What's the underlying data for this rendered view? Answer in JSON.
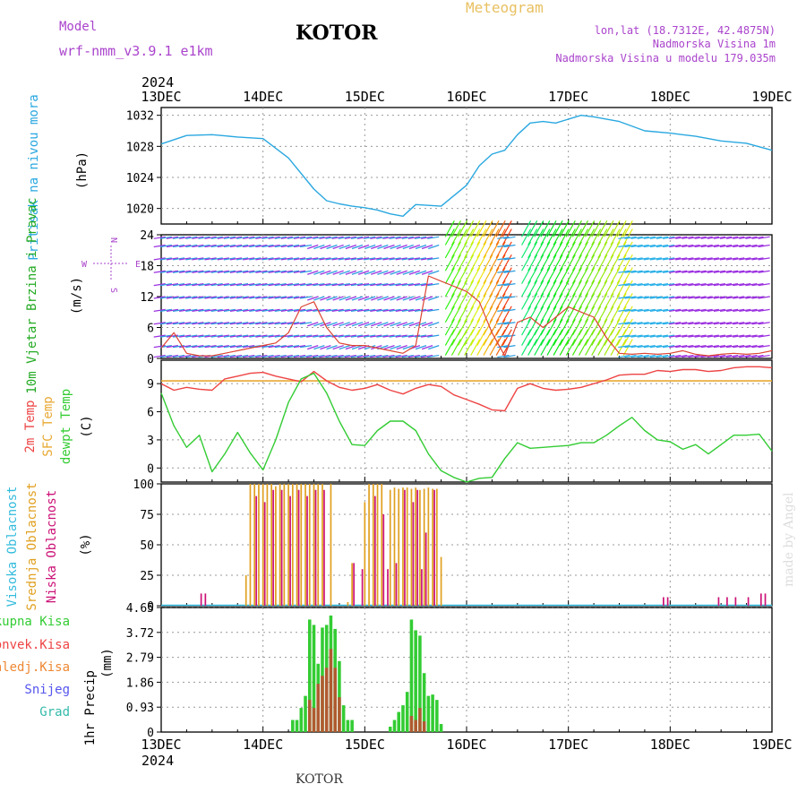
{
  "header": {
    "model_label": "Model",
    "model_name": "wrf-nmm_v3.9.1 e1km",
    "station": "KOTOR",
    "product": "Meteogram",
    "location": "lon,lat (18.7312E, 42.4875N)",
    "elevation": "Nadmorska Visina 1m",
    "model_elevation": "Nadmorska Visina u modelu 179.035m",
    "footer_station": "KOTOR",
    "watermark": "made by Angel"
  },
  "colors": {
    "pressure": "#2aa8e0",
    "temp": "#ee4444",
    "sfc_temp": "#e8a832",
    "dewpoint": "#33cc33",
    "high_cloud": "#33bbdd",
    "mid_cloud": "#e0a020",
    "low_cloud": "#cc1177",
    "total_precip": "#33cc33",
    "conv_precip": "#ee4444",
    "freezing": "#ee8833",
    "snow": "#5555ee",
    "hail": "#33bbaa",
    "model": "#aa44cc"
  },
  "time_axis": {
    "year": "2024",
    "labels": [
      "13DEC",
      "14DEC",
      "15DEC",
      "16DEC",
      "17DEC",
      "18DEC",
      "19DEC"
    ],
    "hours_total": 144
  },
  "chart_data": [
    {
      "type": "line",
      "id": "pressure",
      "ylabel": "Pritisak na nivou mora",
      "unit": "(hPa)",
      "ylim": [
        1018,
        1033
      ],
      "yticks": [
        "1020",
        "1024",
        "1028",
        "1032"
      ],
      "x": [
        0,
        6,
        12,
        18,
        24,
        30,
        36,
        39,
        42,
        45,
        48,
        51,
        54,
        57,
        60,
        66,
        72,
        75,
        78,
        81,
        84,
        87,
        90,
        93,
        96,
        99,
        102,
        108,
        114,
        120,
        126,
        132,
        138,
        144
      ],
      "values": [
        1028.3,
        1029.4,
        1029.5,
        1029.2,
        1029.0,
        1026.5,
        1022.5,
        1021.0,
        1020.6,
        1020.3,
        1020.1,
        1019.8,
        1019.3,
        1019.0,
        1020.5,
        1020.3,
        1023.0,
        1025.5,
        1027.0,
        1027.5,
        1029.5,
        1031.0,
        1031.2,
        1031.0,
        1031.5,
        1032.0,
        1031.8,
        1031.2,
        1030.0,
        1029.7,
        1029.3,
        1028.7,
        1028.4,
        1027.5
      ]
    },
    {
      "type": "line",
      "id": "wind",
      "ylabel": "10m Vjetar Brzina i Pravac",
      "unit": "(m/s)",
      "compass": [
        "N",
        "E",
        "S",
        "W"
      ],
      "ylim": [
        0,
        24
      ],
      "yticks": [
        "0",
        "6",
        "12",
        "18",
        "24"
      ],
      "x": [
        0,
        3,
        6,
        9,
        12,
        15,
        18,
        21,
        24,
        27,
        30,
        33,
        36,
        39,
        42,
        45,
        48,
        51,
        54,
        57,
        60,
        63,
        66,
        69,
        72,
        75,
        78,
        81,
        84,
        87,
        90,
        93,
        96,
        99,
        102,
        105,
        108,
        111,
        114,
        117,
        120,
        123,
        126,
        129,
        132,
        135,
        138,
        141,
        144
      ],
      "values": [
        2,
        5,
        1,
        0.5,
        0.5,
        1,
        1.5,
        2,
        2.5,
        3,
        5,
        10,
        11,
        6,
        3,
        2.5,
        2.5,
        2,
        1.5,
        1,
        2.5,
        16,
        15,
        14,
        13,
        11,
        5,
        0.5,
        7,
        8,
        6,
        8,
        10,
        9,
        8,
        4,
        1,
        0.8,
        1,
        0.8,
        1,
        1.5,
        0.8,
        0.5,
        0.8,
        1,
        0.8,
        1,
        1.5
      ]
    },
    {
      "type": "line",
      "id": "temperature",
      "ylabel": "2m Temp",
      "ylabel2": "SFC Temp",
      "ylabel3": "dewpt Temp",
      "unit": "(C)",
      "ylim": [
        -1.5,
        11.5
      ],
      "yticks": [
        "0",
        "3",
        "6",
        "9"
      ],
      "sfc_temp": 9.3,
      "series": [
        {
          "name": "2m Temp",
          "x": [
            0,
            3,
            6,
            9,
            12,
            15,
            18,
            21,
            24,
            27,
            30,
            33,
            36,
            39,
            42,
            45,
            48,
            51,
            54,
            57,
            60,
            63,
            66,
            69,
            72,
            75,
            78,
            81,
            84,
            87,
            90,
            93,
            96,
            99,
            102,
            105,
            108,
            111,
            114,
            117,
            120,
            123,
            126,
            129,
            132,
            135,
            138,
            141,
            144
          ],
          "values": [
            9,
            8.3,
            8.6,
            8.4,
            8.3,
            9.5,
            9.8,
            10.1,
            10.2,
            9.8,
            9.5,
            9.2,
            10.3,
            9.3,
            8.6,
            8.3,
            8.5,
            8.9,
            8.3,
            7.9,
            8.5,
            8.9,
            8.7,
            7.8,
            7.3,
            6.8,
            6.2,
            6.1,
            8.5,
            9.0,
            8.5,
            8.3,
            8.4,
            8.6,
            9.0,
            9.4,
            9.9,
            10,
            10,
            10.4,
            10.3,
            10.5,
            10.5,
            10.3,
            10.4,
            10.7,
            10.8,
            10.8,
            10.7
          ]
        },
        {
          "name": "dewpt Temp",
          "x": [
            0,
            3,
            6,
            9,
            12,
            15,
            18,
            21,
            24,
            27,
            30,
            33,
            36,
            39,
            42,
            45,
            48,
            51,
            54,
            57,
            60,
            63,
            66,
            69,
            72,
            75,
            78,
            81,
            84,
            87,
            90,
            93,
            96,
            99,
            102,
            105,
            108,
            111,
            114,
            117,
            120,
            123,
            126,
            129,
            132,
            135,
            138,
            141,
            144
          ],
          "values": [
            8,
            4.5,
            2.2,
            3.5,
            -0.4,
            1.5,
            3.8,
            1.6,
            -0.2,
            3,
            7,
            9.5,
            10.1,
            8,
            5,
            2.5,
            2.4,
            4,
            5,
            5,
            4,
            1.5,
            -0.3,
            -1,
            -1.5,
            -1.1,
            -1,
            1,
            2.7,
            2.1,
            2.2,
            2.3,
            2.4,
            2.7,
            2.7,
            3.5,
            4.5,
            5.4,
            4,
            3,
            2.8,
            2,
            2.5,
            1.5,
            2.5,
            3.5,
            3.5,
            3.6,
            1.8
          ]
        }
      ]
    },
    {
      "type": "bar",
      "id": "cloud",
      "ylabel": "Visoka Oblacnost",
      "ylabel2": "Srednja Oblacnost",
      "ylabel3": "Niska Oblacnost",
      "unit": "(%)",
      "ylim": [
        0,
        100
      ],
      "yticks": [
        "0",
        "25",
        "50",
        "75",
        "100"
      ],
      "series": [
        {
          "name": "Srednja Oblacnost",
          "x": [
            20,
            21,
            22,
            23,
            24,
            25,
            26,
            27,
            28,
            29,
            30,
            31,
            32,
            33,
            34,
            35,
            36,
            37,
            38,
            40,
            44,
            45,
            48,
            49,
            50,
            51,
            52,
            54,
            55,
            56,
            57,
            58,
            59,
            60,
            61,
            62,
            63,
            64,
            65,
            66
          ],
          "values": [
            25,
            100,
            100,
            100,
            100,
            100,
            100,
            98,
            100,
            100,
            100,
            100,
            100,
            100,
            100,
            100,
            100,
            100,
            100,
            100,
            3,
            35,
            85,
            100,
            100,
            100,
            100,
            95,
            97,
            96,
            97,
            97,
            96,
            97,
            95,
            96,
            97,
            96,
            96,
            40
          ]
        },
        {
          "name": "Niska Oblacnost",
          "x": [
            9,
            10,
            22,
            24,
            26,
            28,
            30,
            32,
            34,
            36,
            38,
            45,
            47,
            50,
            52,
            53,
            55,
            57,
            59,
            60,
            61,
            62,
            64,
            118,
            119,
            131,
            133,
            135,
            138,
            141,
            142
          ],
          "values": [
            10,
            10,
            90,
            85,
            95,
            95,
            90,
            95,
            90,
            95,
            95,
            35,
            30,
            90,
            75,
            30,
            35,
            95,
            85,
            95,
            30,
            60,
            95,
            7,
            7,
            7,
            7,
            7,
            7,
            10,
            10
          ]
        },
        {
          "name": "Visoka Oblacnost",
          "x": [],
          "values": []
        }
      ]
    },
    {
      "type": "bar",
      "id": "precip",
      "ylabel": "1hr Precip",
      "unit": "(mm)",
      "ylim": [
        0,
        4.65
      ],
      "yticks": [
        "0",
        "0.93",
        "1.86",
        "2.79",
        "3.72",
        "4.65"
      ],
      "legend": [
        "Ukupna Kisa",
        "Konvek.Kisa",
        "Zaledj.Kisa",
        "Snijeg",
        "Grad"
      ],
      "series": [
        {
          "name": "Ukupna Kisa",
          "x": [
            31,
            32,
            33,
            34,
            35,
            36,
            37,
            38,
            39,
            40,
            41,
            42,
            43,
            44,
            45,
            54,
            55,
            56,
            57,
            58,
            59,
            60,
            61,
            62,
            63,
            64,
            65,
            66
          ],
          "values": [
            0.45,
            0.45,
            0.9,
            1.35,
            4.2,
            4.0,
            2.55,
            3.9,
            4.0,
            4.35,
            3.85,
            2.65,
            1.0,
            0.45,
            0.45,
            0.2,
            0.45,
            0.75,
            1.0,
            1.5,
            4.2,
            3.8,
            3.6,
            2.2,
            1.35,
            1.4,
            1.2,
            0.3
          ]
        },
        {
          "name": "Konvek.Kisa",
          "x": [
            35,
            36,
            37,
            38,
            39,
            40,
            41,
            42,
            59,
            60,
            61,
            62
          ],
          "values": [
            1.2,
            0.9,
            1.8,
            2.1,
            2.4,
            3.1,
            2.4,
            1.3,
            0.6,
            0.45,
            0.9,
            0.4
          ]
        }
      ]
    }
  ]
}
